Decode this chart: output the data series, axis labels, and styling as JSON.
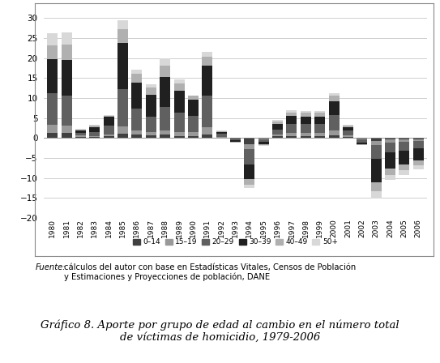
{
  "years": [
    1980,
    1981,
    1982,
    1983,
    1984,
    1985,
    1986,
    1987,
    1988,
    1989,
    1990,
    1991,
    1992,
    1993,
    1994,
    1995,
    1996,
    1997,
    1998,
    1999,
    2000,
    2001,
    2002,
    2003,
    2004,
    2005,
    2006
  ],
  "groups": {
    "0-14": [
      1.2,
      1.2,
      0.3,
      0.2,
      0.5,
      1.0,
      0.8,
      0.6,
      0.8,
      0.5,
      0.5,
      0.8,
      0.1,
      -0.1,
      -1.5,
      -0.2,
      0.4,
      0.5,
      0.5,
      0.5,
      0.7,
      0.3,
      -0.2,
      -0.7,
      -0.4,
      -0.4,
      -0.3
    ],
    "15-19": [
      2.0,
      1.8,
      0.3,
      0.3,
      0.4,
      1.8,
      1.0,
      0.9,
      1.0,
      0.9,
      1.0,
      1.8,
      0.2,
      -0.1,
      -1.3,
      -0.2,
      0.4,
      0.7,
      0.7,
      0.7,
      1.2,
      0.4,
      -0.2,
      -1.0,
      -0.7,
      -0.6,
      -0.5
    ],
    "20-29": [
      8.0,
      7.5,
      0.7,
      1.0,
      2.2,
      9.5,
      5.5,
      3.8,
      6.0,
      5.0,
      4.0,
      8.0,
      0.7,
      -0.4,
      -3.8,
      -0.6,
      1.3,
      2.3,
      2.2,
      2.2,
      3.8,
      1.2,
      -0.7,
      -3.5,
      -2.5,
      -2.2,
      -1.8
    ],
    "30-39": [
      8.5,
      9.0,
      0.6,
      1.1,
      2.2,
      11.5,
      6.5,
      5.5,
      7.5,
      5.5,
      4.0,
      7.5,
      0.5,
      -0.4,
      -3.8,
      -0.6,
      1.3,
      2.0,
      2.0,
      2.0,
      3.5,
      0.8,
      -0.4,
      -6.0,
      -4.0,
      -3.5,
      -3.0
    ],
    "40-49": [
      3.5,
      3.8,
      0.2,
      0.4,
      0.3,
      3.5,
      2.2,
      1.8,
      2.8,
      1.8,
      1.0,
      2.2,
      0.2,
      -0.1,
      -1.3,
      -0.2,
      0.7,
      0.9,
      0.9,
      0.9,
      1.3,
      0.4,
      -0.2,
      -2.2,
      -1.7,
      -1.4,
      -1.3
    ],
    "50+": [
      3.0,
      3.2,
      0.2,
      0.3,
      0.2,
      2.2,
      1.0,
      0.9,
      1.8,
      0.9,
      0.2,
      1.2,
      0.1,
      -0.1,
      -0.8,
      -0.2,
      0.4,
      0.5,
      0.5,
      0.5,
      0.8,
      0.2,
      -0.1,
      -1.8,
      -1.3,
      -1.1,
      -0.9
    ]
  },
  "colors": {
    "0-14": "#404040",
    "15-19": "#999999",
    "20-29": "#606060",
    "30-39": "#202020",
    "40-49": "#b0b0b0",
    "50+": "#d8d8d8"
  },
  "ylim": [
    -20,
    30
  ],
  "yticks": [
    -20,
    -15,
    -10,
    -5,
    0,
    5,
    10,
    15,
    20,
    25,
    30
  ],
  "background_color": "#ffffff",
  "border_color": "#000000",
  "source_text_italic": "Fuente:",
  "source_text_normal": " cálculos del autor con base en Estadísticas Vitales, Censos de Población\ny Estimaciones y Proyecciones de población, DANE",
  "title_text": "Gráfico 8. Aporte por grupo de edad al cambio en el número total\nde víctimas de homicidio, 1979-2006"
}
